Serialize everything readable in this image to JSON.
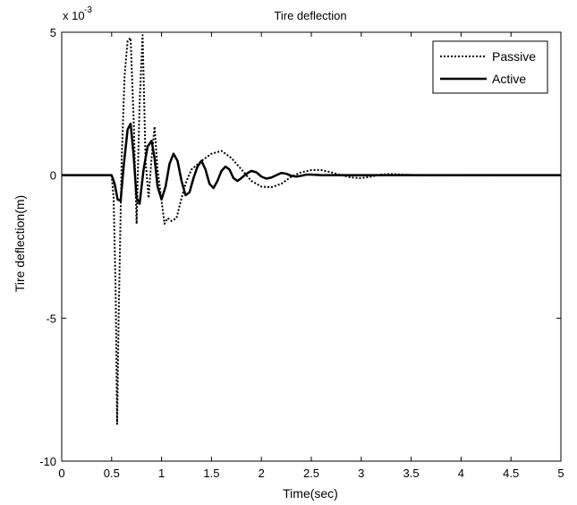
{
  "chart_data": {
    "type": "line",
    "title": "Tire deflection",
    "xlabel": "Time(sec)",
    "ylabel": "Tire deflection(m)",
    "y_multiplier": "x 10",
    "y_multiplier_exp": "-3",
    "xlim": [
      0,
      5
    ],
    "ylim": [
      -10,
      5
    ],
    "x_ticks": [
      0,
      0.5,
      1,
      1.5,
      2,
      2.5,
      3,
      3.5,
      4,
      4.5,
      5
    ],
    "x_tick_labels": [
      "0",
      "0.5",
      "1",
      "1.5",
      "2",
      "2.5",
      "3",
      "3.5",
      "4",
      "4.5",
      "5"
    ],
    "y_ticks": [
      -10,
      -5,
      0,
      5
    ],
    "y_tick_labels": [
      "-10",
      "-5",
      "0",
      "5"
    ],
    "grid": false,
    "legend_position": "top-right",
    "series": [
      {
        "name": "Passive",
        "style": "dotted",
        "color": "#000000",
        "x": [
          0,
          0.5,
          0.52,
          0.54,
          0.555,
          0.57,
          0.6,
          0.63,
          0.66,
          0.69,
          0.72,
          0.75,
          0.78,
          0.81,
          0.84,
          0.87,
          0.9,
          0.93,
          0.96,
          1.0,
          1.03,
          1.06,
          1.1,
          1.15,
          1.2,
          1.25,
          1.3,
          1.4,
          1.5,
          1.6,
          1.7,
          1.8,
          1.9,
          2.0,
          2.1,
          2.2,
          2.3,
          2.4,
          2.5,
          2.6,
          2.7,
          2.8,
          2.9,
          3.0,
          3.1,
          3.2,
          3.3,
          3.5,
          3.7,
          4.0,
          4.3,
          4.6,
          5.0
        ],
        "y": [
          0,
          0,
          -0.8,
          -4.0,
          -8.7,
          -5.0,
          0.5,
          3.5,
          4.7,
          4.8,
          2.0,
          -1.7,
          2.5,
          4.9,
          0.5,
          -0.8,
          0.6,
          1.7,
          0.2,
          -0.9,
          -1.7,
          -1.5,
          -1.6,
          -1.5,
          -0.8,
          -0.2,
          0.2,
          0.5,
          0.75,
          0.85,
          0.6,
          0.2,
          -0.2,
          -0.4,
          -0.42,
          -0.3,
          -0.05,
          0.1,
          0.18,
          0.18,
          0.1,
          0.0,
          -0.08,
          -0.1,
          -0.05,
          0.02,
          0.04,
          0.01,
          -0.01,
          0,
          0,
          0,
          0
        ]
      },
      {
        "name": "Active",
        "style": "solid",
        "color": "#000000",
        "x": [
          0,
          0.5,
          0.53,
          0.56,
          0.59,
          0.62,
          0.66,
          0.69,
          0.72,
          0.75,
          0.78,
          0.82,
          0.86,
          0.9,
          0.93,
          0.96,
          1.0,
          1.04,
          1.08,
          1.12,
          1.16,
          1.2,
          1.24,
          1.28,
          1.32,
          1.36,
          1.4,
          1.44,
          1.48,
          1.52,
          1.56,
          1.6,
          1.64,
          1.68,
          1.72,
          1.76,
          1.8,
          1.85,
          1.9,
          1.95,
          2.0,
          2.05,
          2.1,
          2.15,
          2.2,
          2.25,
          2.3,
          2.35,
          2.4,
          2.45,
          2.5,
          2.6,
          2.7,
          2.8,
          2.9,
          3.0,
          3.5,
          4.0,
          4.5,
          5.0
        ],
        "y": [
          0,
          0,
          -0.3,
          -0.85,
          -0.9,
          0.3,
          1.6,
          1.8,
          0.7,
          -0.8,
          -1.0,
          0.2,
          1.0,
          1.2,
          0.6,
          -0.4,
          -0.85,
          -0.4,
          0.4,
          0.75,
          0.5,
          -0.2,
          -0.7,
          -0.6,
          -0.1,
          0.3,
          0.5,
          0.2,
          -0.3,
          -0.45,
          -0.2,
          0.15,
          0.3,
          0.2,
          -0.1,
          -0.2,
          -0.1,
          0.05,
          0.15,
          0.1,
          -0.05,
          -0.12,
          -0.08,
          0.0,
          0.08,
          0.05,
          -0.02,
          -0.05,
          -0.02,
          0.02,
          0.02,
          0.0,
          0.0,
          0,
          0,
          0,
          0,
          0,
          0,
          0
        ]
      }
    ]
  }
}
